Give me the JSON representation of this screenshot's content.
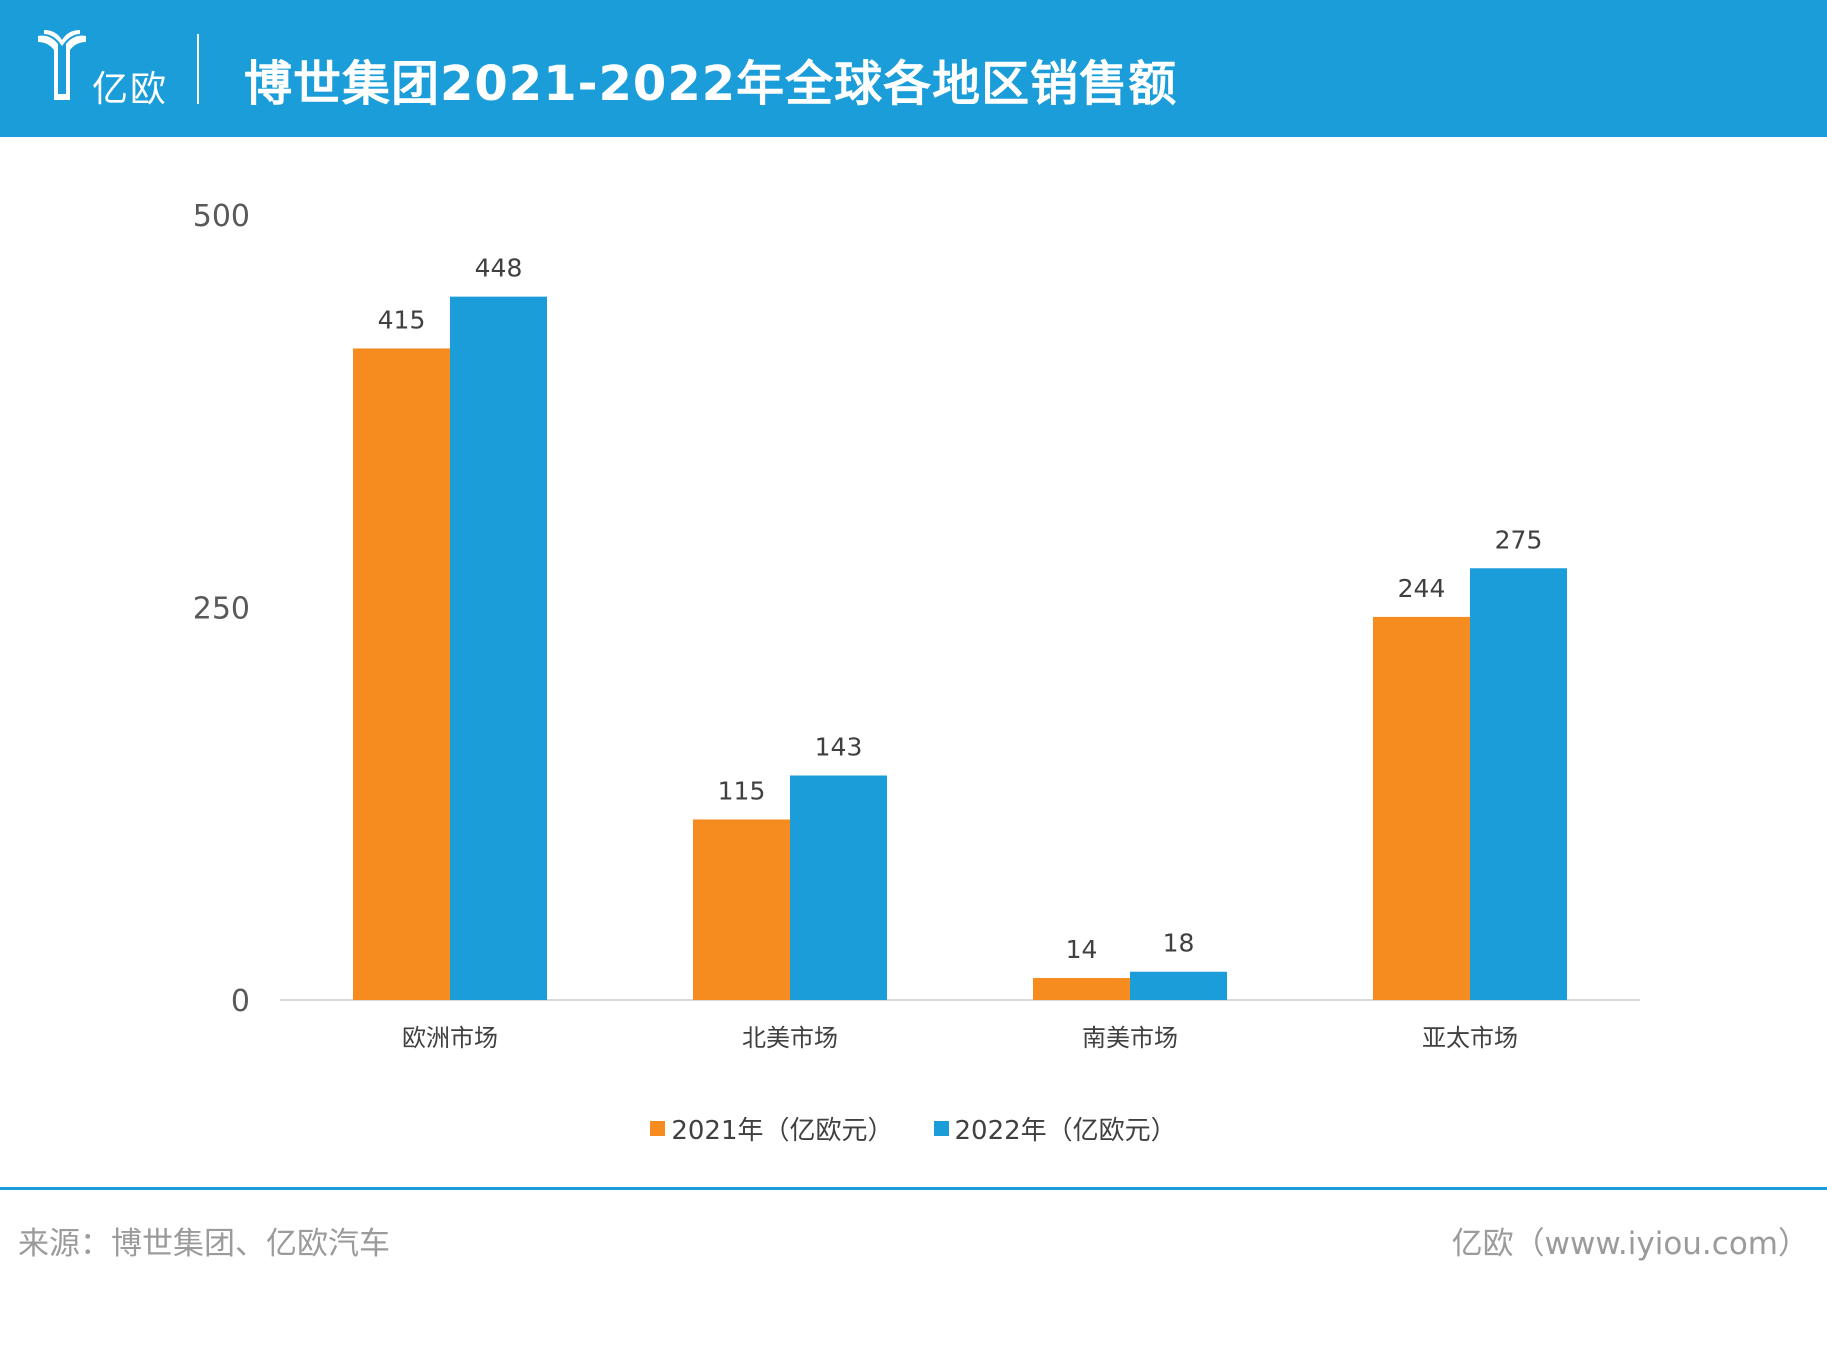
{
  "header": {
    "logo_text": "亿欧",
    "title": "博世集团2021-2022年全球各地区销售额"
  },
  "chart_data": {
    "type": "bar",
    "categories": [
      "欧洲市场",
      "北美市场",
      "南美市场",
      "亚太市场"
    ],
    "series": [
      {
        "name": "2021年（亿欧元）",
        "values": [
          415,
          115,
          14,
          244
        ],
        "color": "#f68b1f"
      },
      {
        "name": "2022年（亿欧元）",
        "values": [
          448,
          143,
          18,
          275
        ],
        "color": "#1b9dd9"
      }
    ],
    "yticks": [
      0,
      250,
      500
    ],
    "ylim": [
      0,
      500
    ],
    "legend": "bottom",
    "grid": false
  },
  "footer": {
    "source": "来源：博世集团、亿欧汽车",
    "credit": "亿欧（www.iyiou.com）"
  }
}
